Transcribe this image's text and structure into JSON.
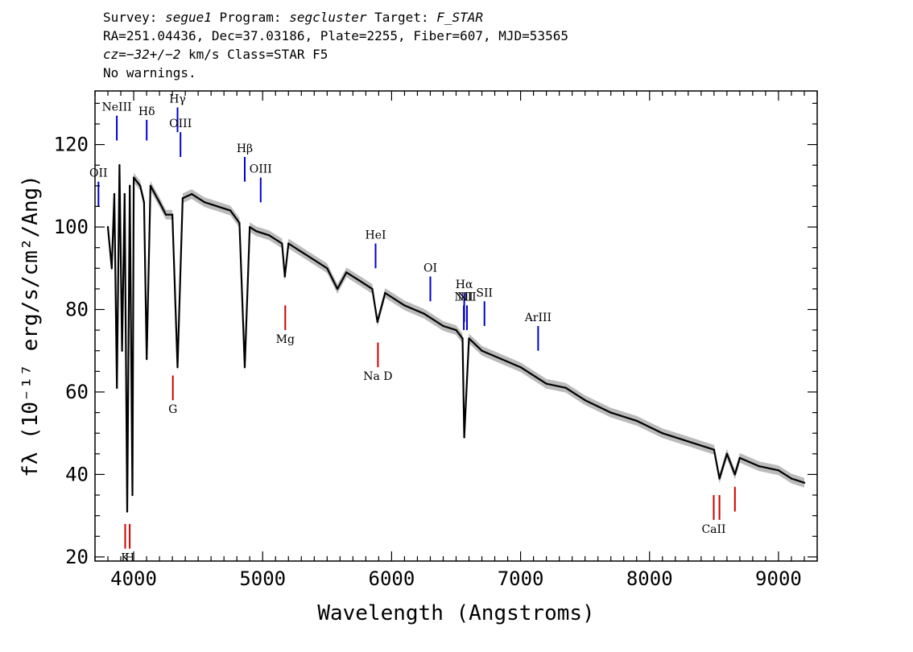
{
  "header": {
    "line1_survey_label": "Survey: ",
    "line1_survey": "segue1",
    "line1_program_label": " Program: ",
    "line1_program": "segcluster",
    "line1_target_label": " Target: ",
    "line1_target": "F_STAR",
    "line2": "RA=251.04436, Dec=37.03186, Plate=2255, Fiber=607, MJD=53565",
    "line3_prefix": "cz=",
    "line3_value": "−32+/−2",
    "line3_suffix": " km/s Class=STAR F5",
    "line4": "No warnings."
  },
  "chart_data": {
    "type": "line",
    "title": "",
    "xlabel": "Wavelength (Angstroms)",
    "ylabel": "fλ (10⁻¹⁷ erg/s/cm²/Ang)",
    "xlim": [
      3700,
      9300
    ],
    "ylim": [
      19,
      133
    ],
    "x_ticks": [
      4000,
      5000,
      6000,
      7000,
      8000,
      9000
    ],
    "y_ticks": [
      20,
      40,
      60,
      80,
      100,
      120
    ],
    "grid": false,
    "series": [
      {
        "color": "#000000",
        "error_band_color": "#bbbbbb",
        "x": [
          3800,
          3830,
          3850,
          3870,
          3890,
          3910,
          3930,
          3950,
          3970,
          3990,
          4000,
          4050,
          4080,
          4101,
          4130,
          4200,
          4250,
          4300,
          4340,
          4380,
          4450,
          4550,
          4650,
          4750,
          4820,
          4861,
          4900,
          4950,
          5050,
          5150,
          5172,
          5200,
          5300,
          5400,
          5500,
          5580,
          5650,
          5750,
          5850,
          5890,
          5950,
          6100,
          6250,
          6400,
          6500,
          6550,
          6563,
          6600,
          6700,
          6850,
          7000,
          7150,
          7200,
          7350,
          7500,
          7700,
          7900,
          8100,
          8300,
          8500,
          8542,
          8600,
          8662,
          8700,
          8850,
          9000,
          9100,
          9200
        ],
        "y": [
          100,
          90,
          108,
          61,
          115,
          70,
          108,
          31,
          110,
          35,
          112,
          110,
          106,
          68,
          110,
          106,
          103,
          103,
          66,
          107,
          108,
          106,
          105,
          104,
          101,
          66,
          100,
          99,
          98,
          96,
          88,
          96,
          94,
          92,
          90,
          85,
          89,
          87,
          85,
          77,
          84,
          81,
          79,
          76,
          75,
          73,
          49,
          73,
          70,
          68,
          66,
          63,
          62,
          61,
          58,
          55,
          53,
          50,
          48,
          46,
          39,
          45,
          40,
          44,
          42,
          41,
          39,
          38
        ]
      }
    ],
    "line_labels": [
      {
        "text": "OII",
        "x": 3727,
        "color": "#0000cc",
        "y_top": 111,
        "y_bottom": 105
      },
      {
        "text": "NeIII",
        "x": 3869,
        "color": "#0000cc",
        "y_top": 127,
        "y_bottom": 121
      },
      {
        "text": "Hδ",
        "x": 4101,
        "color": "#0000cc",
        "y_top": 126,
        "y_bottom": 121
      },
      {
        "text": "Hγ",
        "x": 4340,
        "color": "#0000cc",
        "y_top": 129,
        "y_bottom": 123
      },
      {
        "text": "OIII",
        "x": 4363,
        "color": "#0000cc",
        "y_top": 123,
        "y_bottom": 117
      },
      {
        "text": "Hβ",
        "x": 4861,
        "color": "#0000cc",
        "y_top": 117,
        "y_bottom": 111
      },
      {
        "text": "OIII",
        "x": 4985,
        "color": "#0000cc",
        "y_top": 112,
        "y_bottom": 106
      },
      {
        "text": "HeI",
        "x": 5876,
        "color": "#0000cc",
        "y_top": 96,
        "y_bottom": 90
      },
      {
        "text": "OI",
        "x": 6300,
        "color": "#0000cc",
        "y_top": 88,
        "y_bottom": 82
      },
      {
        "text": "NII",
        "x": 6560,
        "color": "#0000cc",
        "y_top": 81,
        "y_bottom": 75
      },
      {
        "text": "Hα",
        "x": 6563,
        "color": "#0000cc",
        "y_top": 84,
        "y_bottom": 77
      },
      {
        "text": "NII",
        "x": 6584,
        "color": "#0000cc",
        "y_top": 81,
        "y_bottom": 75
      },
      {
        "text": "SII",
        "x": 6720,
        "color": "#0000cc",
        "y_top": 82,
        "y_bottom": 76
      },
      {
        "text": "ArIII",
        "x": 7136,
        "color": "#0000cc",
        "y_top": 76,
        "y_bottom": 70
      },
      {
        "text": "K",
        "x": 3934,
        "color": "#cc0000",
        "y_top": 28,
        "y_bottom": 22
      },
      {
        "text": "H",
        "x": 3969,
        "color": "#cc0000",
        "y_top": 28,
        "y_bottom": 22
      },
      {
        "text": "G",
        "x": 4304,
        "color": "#cc0000",
        "y_top": 64,
        "y_bottom": 58
      },
      {
        "text": "Mg",
        "x": 5175,
        "color": "#cc0000",
        "y_top": 81,
        "y_bottom": 75
      },
      {
        "text": "Na D",
        "x": 5894,
        "color": "#cc0000",
        "y_top": 72,
        "y_bottom": 66
      },
      {
        "text": "CaII",
        "x": 8498,
        "color": "#cc0000",
        "y_top": 35,
        "y_bottom": 29
      },
      {
        "text": "",
        "x": 8542,
        "color": "#cc0000",
        "y_top": 35,
        "y_bottom": 29
      },
      {
        "text": "",
        "x": 8662,
        "color": "#cc0000",
        "y_top": 37,
        "y_bottom": 31
      }
    ]
  }
}
